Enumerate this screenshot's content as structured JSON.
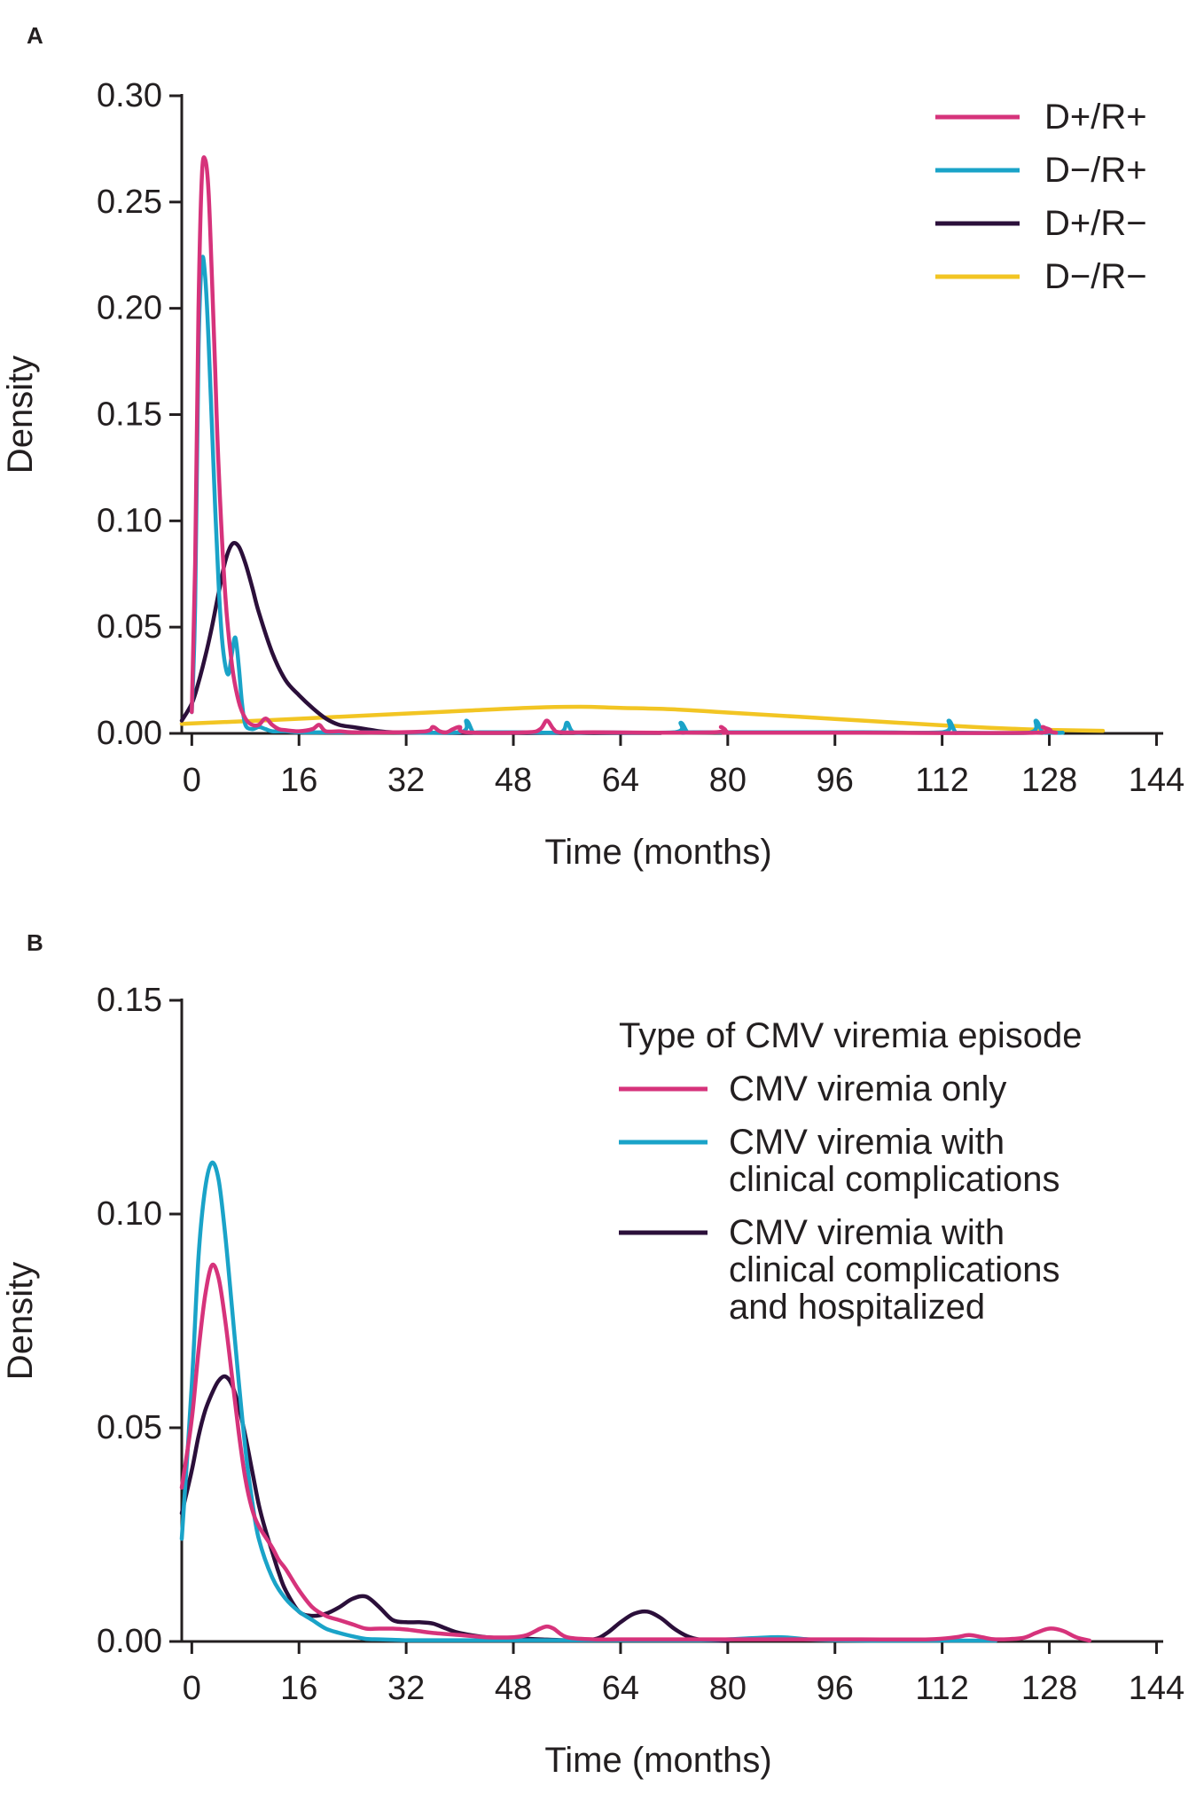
{
  "chart_data": [
    {
      "panel": "A",
      "type": "line",
      "title": "",
      "xlabel": "Time (months)",
      "ylabel": "Density",
      "xlim": [
        -1.5,
        145
      ],
      "ylim": [
        0,
        0.3
      ],
      "xticks": [
        0,
        16,
        32,
        48,
        64,
        80,
        96,
        112,
        128,
        144
      ],
      "yticks": [
        0,
        0.05,
        0.1,
        0.15,
        0.2,
        0.25,
        0.3
      ],
      "xtick_labels": [
        "0",
        "16",
        "32",
        "48",
        "64",
        "80",
        "96",
        "112",
        "128",
        "144"
      ],
      "ytick_labels": [
        "0.00",
        "0.05",
        "0.10",
        "0.15",
        "0.20",
        "0.25",
        "0.30"
      ],
      "legend_title": "",
      "legend_position": "top-right",
      "series": [
        {
          "name": "D+/R+",
          "color": "#d6337b",
          "x": [
            0,
            0.5,
            1,
            1.5,
            2,
            2.5,
            3,
            3.5,
            4,
            5,
            6,
            7,
            8,
            9,
            10,
            11,
            12,
            13,
            14,
            16,
            18,
            19,
            20,
            22,
            24,
            30,
            35,
            36,
            37,
            38,
            39,
            40,
            41,
            50,
            52,
            53,
            54,
            55,
            60,
            78,
            79,
            80,
            81,
            100,
            126,
            127,
            128,
            129
          ],
          "y": [
            0.01,
            0.08,
            0.2,
            0.262,
            0.27,
            0.255,
            0.215,
            0.17,
            0.125,
            0.065,
            0.032,
            0.015,
            0.007,
            0.004,
            0.004,
            0.007,
            0.004,
            0.002,
            0.0015,
            0.001,
            0.002,
            0.004,
            0.001,
            0.001,
            0.0005,
            0.0005,
            0.001,
            0.003,
            0.001,
            0.0005,
            0.002,
            0.003,
            0.0005,
            0.0005,
            0.002,
            0.006,
            0.002,
            0.0005,
            0.0005,
            0.0005,
            0.003,
            0.0005,
            0.0003,
            0.0003,
            0.0003,
            0.003,
            0.001,
            0.0003
          ]
        },
        {
          "name": "D−/R+",
          "color": "#1aa3c8",
          "x": [
            0,
            0.5,
            1,
            1.5,
            2,
            2.5,
            3,
            3.5,
            4,
            4.5,
            5,
            5.5,
            6,
            6.5,
            7,
            7.5,
            8,
            9,
            10,
            11,
            12,
            14,
            16,
            20,
            24,
            30,
            40,
            41,
            42,
            43,
            50,
            55,
            56,
            57,
            60,
            72,
            73,
            74,
            75,
            100,
            112,
            113,
            114,
            115,
            125,
            126,
            127,
            128,
            130
          ],
          "y": [
            0.01,
            0.06,
            0.18,
            0.222,
            0.215,
            0.185,
            0.145,
            0.105,
            0.07,
            0.045,
            0.032,
            0.028,
            0.038,
            0.045,
            0.032,
            0.014,
            0.004,
            0.002,
            0.003,
            0.002,
            0.001,
            0.001,
            0.0005,
            0.0005,
            0.0005,
            0.0005,
            0.0005,
            0.006,
            0.0005,
            0.0005,
            0.0005,
            0.0005,
            0.005,
            0.0005,
            0.0005,
            0.0005,
            0.005,
            0.0005,
            0.0005,
            0.0005,
            0.0005,
            0.006,
            0.0005,
            0.0003,
            0.0003,
            0.006,
            0.0005,
            0.0003,
            0.0003
          ]
        },
        {
          "name": "D+/R−",
          "color": "#2b0f3a",
          "x": [
            -1.5,
            0,
            1,
            2,
            3,
            4,
            5,
            6,
            7,
            8,
            9,
            10,
            12,
            14,
            16,
            18,
            20,
            22,
            24,
            26,
            28,
            30,
            34,
            40,
            50,
            60,
            70
          ],
          "y": [
            0.006,
            0.014,
            0.024,
            0.036,
            0.05,
            0.066,
            0.081,
            0.089,
            0.088,
            0.08,
            0.069,
            0.057,
            0.038,
            0.025,
            0.018,
            0.012,
            0.007,
            0.004,
            0.003,
            0.002,
            0.001,
            0.0005,
            0.0003,
            0.0002,
            0.0002,
            0.0002,
            0.0002
          ]
        },
        {
          "name": "D−/R−",
          "color": "#f2c523",
          "x": [
            -1.5,
            10,
            20,
            30,
            40,
            50,
            58,
            64,
            72,
            80,
            96,
            112,
            120,
            126,
            132,
            136
          ],
          "y": [
            0.0045,
            0.006,
            0.0075,
            0.009,
            0.0105,
            0.012,
            0.0125,
            0.012,
            0.0113,
            0.0098,
            0.0068,
            0.0038,
            0.0025,
            0.0018,
            0.0014,
            0.0012
          ]
        }
      ]
    },
    {
      "panel": "B",
      "type": "line",
      "title": "",
      "xlabel": "Time (months)",
      "ylabel": "Density",
      "xlim": [
        -1.5,
        145
      ],
      "ylim": [
        0,
        0.15
      ],
      "xticks": [
        0,
        16,
        32,
        48,
        64,
        80,
        96,
        112,
        128,
        144
      ],
      "yticks": [
        0,
        0.05,
        0.1,
        0.15
      ],
      "xtick_labels": [
        "0",
        "16",
        "32",
        "48",
        "64",
        "80",
        "96",
        "112",
        "128",
        "144"
      ],
      "ytick_labels": [
        "0.00",
        "0.05",
        "0.10",
        "0.15"
      ],
      "legend_title": "Type of CMV viremia episode",
      "legend_position": "top-right",
      "series": [
        {
          "name": "CMV viremia only",
          "label_lines": [
            "CMV viremia only"
          ],
          "color": "#d6337b",
          "x": [
            -1.5,
            0,
            1,
            2,
            3,
            4,
            5,
            6,
            7,
            8,
            9,
            10,
            12,
            13,
            14,
            16,
            18,
            20,
            22,
            24,
            26,
            28,
            30,
            32,
            34,
            36,
            40,
            44,
            48,
            50,
            52,
            53,
            54,
            56,
            60,
            64,
            70,
            80,
            90,
            100,
            110,
            114,
            116,
            118,
            120,
            124,
            126,
            128,
            130,
            132,
            134
          ],
          "y": [
            0.036,
            0.052,
            0.068,
            0.081,
            0.088,
            0.085,
            0.075,
            0.062,
            0.049,
            0.038,
            0.031,
            0.027,
            0.022,
            0.019,
            0.017,
            0.012,
            0.008,
            0.006,
            0.005,
            0.004,
            0.003,
            0.003,
            0.003,
            0.0028,
            0.0024,
            0.002,
            0.0015,
            0.001,
            0.001,
            0.0015,
            0.003,
            0.0035,
            0.003,
            0.001,
            0.0005,
            0.0005,
            0.0005,
            0.0005,
            0.0005,
            0.0005,
            0.0005,
            0.001,
            0.0015,
            0.001,
            0.0005,
            0.0008,
            0.002,
            0.003,
            0.0025,
            0.001,
            0.0002
          ]
        },
        {
          "name": "CMV viremia with clinical complications",
          "label_lines": [
            "CMV viremia with",
            "clinical complications"
          ],
          "color": "#1aa3c8",
          "x": [
            -1.5,
            0,
            1,
            2,
            3,
            4,
            5,
            6,
            7,
            8,
            9,
            10,
            12,
            14,
            16,
            18,
            20,
            22,
            24,
            26,
            28,
            30,
            32,
            34,
            40,
            48,
            56,
            64,
            70,
            76,
            80,
            84,
            88,
            92,
            96,
            104,
            112,
            120
          ],
          "y": [
            0.024,
            0.06,
            0.09,
            0.106,
            0.112,
            0.108,
            0.095,
            0.078,
            0.061,
            0.045,
            0.033,
            0.024,
            0.015,
            0.01,
            0.007,
            0.005,
            0.003,
            0.002,
            0.0012,
            0.0006,
            0.0005,
            0.0004,
            0.0003,
            0.0003,
            0.0003,
            0.0003,
            0.0003,
            0.0003,
            0.0003,
            0.0003,
            0.0005,
            0.0008,
            0.001,
            0.0005,
            0.0003,
            0.0002,
            0.0002,
            0.0002
          ]
        },
        {
          "name": "CMV viremia with clinical complications and hospitalized",
          "label_lines": [
            "CMV viremia with",
            "clinical complications",
            "and hospitalized"
          ],
          "color": "#2b0f3a",
          "x": [
            -1.5,
            0,
            1,
            2,
            3,
            4,
            5,
            6,
            7,
            8,
            9,
            10,
            11,
            12,
            13,
            14,
            16,
            18,
            20,
            22,
            24,
            26,
            28,
            30,
            32,
            34,
            36,
            38,
            40,
            44,
            48,
            52,
            56,
            60,
            62,
            64,
            66,
            68,
            70,
            72,
            74,
            76,
            78,
            80
          ],
          "y": [
            0.03,
            0.04,
            0.048,
            0.054,
            0.058,
            0.061,
            0.062,
            0.06,
            0.055,
            0.048,
            0.04,
            0.032,
            0.026,
            0.021,
            0.016,
            0.012,
            0.007,
            0.006,
            0.0065,
            0.008,
            0.01,
            0.0105,
            0.008,
            0.005,
            0.0045,
            0.0045,
            0.0042,
            0.003,
            0.002,
            0.001,
            0.0008,
            0.0005,
            0.0003,
            0.0005,
            0.002,
            0.0045,
            0.0065,
            0.007,
            0.0055,
            0.003,
            0.0012,
            0.0004,
            0.0002,
            0.0001
          ]
        }
      ]
    }
  ]
}
